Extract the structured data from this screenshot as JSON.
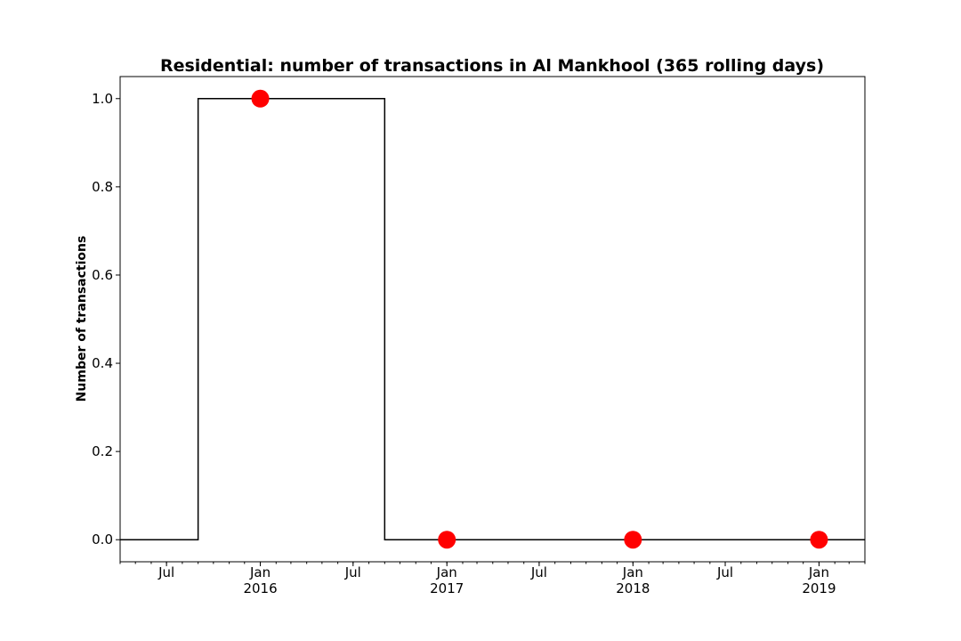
{
  "chart_data": {
    "type": "line",
    "title": "Residential: number of transactions in Al Mankhool (365 rolling days)",
    "xlabel": "",
    "ylabel": "Number of transactions",
    "xlim": [
      "2015-04-01",
      "2019-04-01"
    ],
    "ylim": [
      -0.05,
      1.05
    ],
    "y_ticks": [
      0.0,
      0.2,
      0.4,
      0.6,
      0.8,
      1.0
    ],
    "y_tick_labels": [
      "0.0",
      "0.2",
      "0.4",
      "0.6",
      "0.8",
      "1.0"
    ],
    "x_major_ticks": [
      {
        "date": "2015-07-01",
        "label": "Jul",
        "year": ""
      },
      {
        "date": "2016-01-01",
        "label": "Jan",
        "year": "2016"
      },
      {
        "date": "2016-07-01",
        "label": "Jul",
        "year": ""
      },
      {
        "date": "2017-01-01",
        "label": "Jan",
        "year": "2017"
      },
      {
        "date": "2017-07-01",
        "label": "Jul",
        "year": ""
      },
      {
        "date": "2018-01-01",
        "label": "Jan",
        "year": "2018"
      },
      {
        "date": "2018-07-01",
        "label": "Jul",
        "year": ""
      },
      {
        "date": "2019-01-01",
        "label": "Jan",
        "year": "2019"
      }
    ],
    "grid": false,
    "series": [
      {
        "style": "step",
        "color": "#000000",
        "x": [
          "2015-04-01",
          "2015-09-01",
          "2015-09-01",
          "2016-09-01",
          "2016-09-01",
          "2019-04-01"
        ],
        "y": [
          0,
          0,
          1,
          1,
          0,
          0
        ]
      },
      {
        "style": "markers",
        "color": "#ff0000",
        "x": [
          "2016-01-01",
          "2017-01-01",
          "2018-01-01",
          "2019-01-01"
        ],
        "y": [
          1,
          0,
          0,
          0
        ]
      }
    ]
  }
}
